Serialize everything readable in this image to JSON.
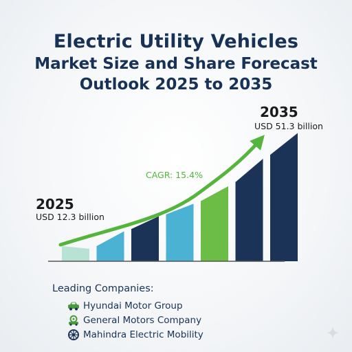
{
  "title": {
    "line1": "Electric Utility Vehicles",
    "line2": "Market Size and Share Forecast",
    "line3": "Outlook 2025 to 2035"
  },
  "chart_data": {
    "type": "bar",
    "categories": [
      "",
      "",
      "",
      "",
      "",
      "",
      ""
    ],
    "values": [
      5,
      12,
      18,
      23,
      30,
      41,
      51.3
    ],
    "bar_colors": [
      "#b8e3d4",
      "#4bb2d4",
      "#1b3356",
      "#4bb2d4",
      "#6cbd45",
      "#1b3356",
      "#1b3356"
    ],
    "ylim": [
      0,
      55
    ],
    "annotations": {
      "start_year": "2025",
      "start_value": "USD 12.3 billion",
      "end_year": "2035",
      "end_value": "USD 51.3 billion",
      "cagr": "CAGR: 15.4%"
    },
    "trend_color": "#55b43c",
    "axis_color": "#555555"
  },
  "companies": {
    "heading": "Leading Companies:",
    "items": [
      {
        "name": "Hyundai Motor Group",
        "icon": "car-icon",
        "color": "#4a9a3c"
      },
      {
        "name": "General Motors Company",
        "icon": "car-gear-icon",
        "color": "#4a9a3c"
      },
      {
        "name": "Mahindra Electric Mobility",
        "icon": "wheel-icon",
        "color": "#1b3356"
      }
    ]
  }
}
